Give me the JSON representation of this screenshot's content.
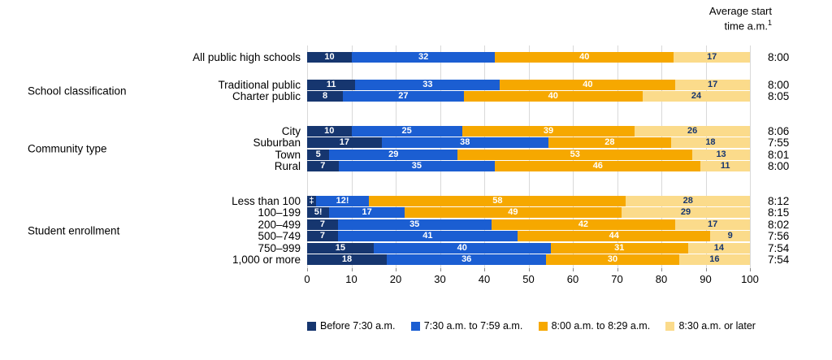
{
  "header": {
    "note_line1": "Average start",
    "note_line2": "time a.m.",
    "note_sup": "1"
  },
  "chart_data": {
    "type": "bar",
    "stacked": true,
    "orientation": "horizontal",
    "title": "",
    "xlabel": "",
    "ylabel": "",
    "xlim": [
      0,
      100
    ],
    "x_ticks": [
      0,
      10,
      20,
      30,
      40,
      50,
      60,
      70,
      80,
      90,
      100
    ],
    "grid": true,
    "legend_position": "bottom",
    "series_names": [
      "Before 7:30 a.m.",
      "7:30 a.m. to 7:59 a.m.",
      "8:00 a.m. to 8:29 a.m.",
      "8:30 a.m. or later"
    ],
    "series_colors": [
      "#16366f",
      "#1b5ed2",
      "#f6a800",
      "#fbdb8b"
    ],
    "right_column_header": "Average start time a.m.",
    "groups": [
      {
        "label": "",
        "rows": [
          {
            "label": "All public high schools",
            "values": [
              10,
              32,
              40,
              17
            ],
            "display": [
              "10",
              "32",
              "40",
              "17"
            ],
            "avg": "8:00"
          }
        ]
      },
      {
        "label": "School classification",
        "rows": [
          {
            "label": "Traditional public",
            "values": [
              11,
              33,
              40,
              17
            ],
            "display": [
              "11",
              "33",
              "40",
              "17"
            ],
            "avg": "8:00"
          },
          {
            "label": "Charter public",
            "values": [
              8,
              27,
              40,
              24
            ],
            "display": [
              "8",
              "27",
              "40",
              "24"
            ],
            "avg": "8:05"
          }
        ]
      },
      {
        "label": "Community type",
        "rows": [
          {
            "label": "City",
            "values": [
              10,
              25,
              39,
              26
            ],
            "display": [
              "10",
              "25",
              "39",
              "26"
            ],
            "avg": "8:06"
          },
          {
            "label": "Suburban",
            "values": [
              17,
              38,
              28,
              18
            ],
            "display": [
              "17",
              "38",
              "28",
              "18"
            ],
            "avg": "7:55"
          },
          {
            "label": "Town",
            "values": [
              5,
              29,
              53,
              13
            ],
            "display": [
              "5",
              "29",
              "53",
              "13"
            ],
            "avg": "8:01"
          },
          {
            "label": "Rural",
            "values": [
              7,
              35,
              46,
              11
            ],
            "display": [
              "7",
              "35",
              "46",
              "11"
            ],
            "avg": "8:00"
          }
        ]
      },
      {
        "label": "Student enrollment",
        "rows": [
          {
            "label": "Less than 100",
            "values": [
              2,
              12,
              58,
              28
            ],
            "display": [
              "‡",
              "12!",
              "58",
              "28"
            ],
            "avg": "8:12"
          },
          {
            "label": "100–199",
            "values": [
              5,
              17,
              49,
              29
            ],
            "display": [
              "5!",
              "17",
              "49",
              "29"
            ],
            "avg": "8:15"
          },
          {
            "label": "200–499",
            "values": [
              7,
              35,
              42,
              17
            ],
            "display": [
              "7",
              "35",
              "42",
              "17"
            ],
            "avg": "8:02"
          },
          {
            "label": "500–749",
            "values": [
              7,
              41,
              44,
              9
            ],
            "display": [
              "7",
              "41",
              "44",
              "9"
            ],
            "avg": "7:56"
          },
          {
            "label": "750–999",
            "values": [
              15,
              40,
              31,
              14
            ],
            "display": [
              "15",
              "40",
              "31",
              "14"
            ],
            "avg": "7:54"
          },
          {
            "label": "1,000 or more",
            "values": [
              18,
              36,
              30,
              16
            ],
            "display": [
              "18",
              "36",
              "30",
              "16"
            ],
            "avg": "7:54"
          }
        ]
      }
    ]
  }
}
